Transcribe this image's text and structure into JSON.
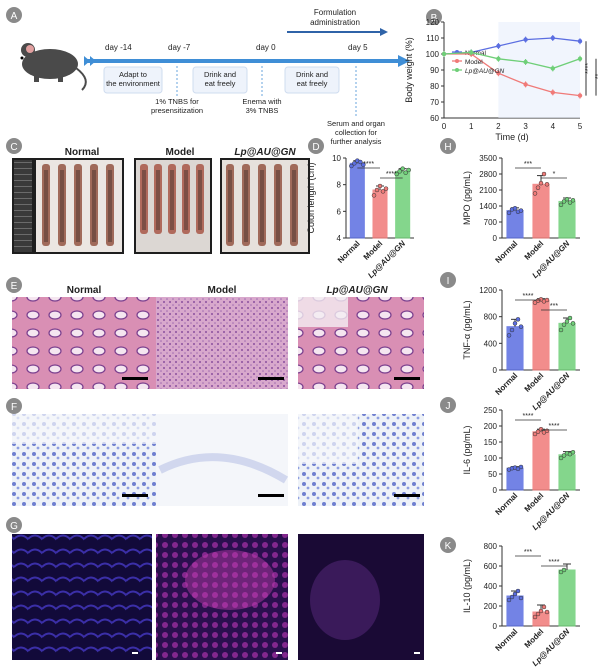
{
  "panelA": {
    "letter": "A",
    "formulation_label": "Formulation administration",
    "days": [
      "day -14",
      "day -7",
      "day 0",
      "day 5"
    ],
    "boxes": [
      "Adapt to the environment",
      "Drink and eat freely",
      "Drink and eat freely"
    ],
    "notes": [
      "1% TNBS for presensitization",
      "Enema with 3% TNBS",
      "Serum and organ collection for further analysis"
    ]
  },
  "panelC": {
    "letter": "C",
    "titles": [
      "Normal",
      "Model",
      "Lp@AU@GN"
    ]
  },
  "panelE": {
    "letter": "E",
    "titles": [
      "Normal",
      "Model",
      "Lp@AU@GN"
    ]
  },
  "panelF": {
    "letter": "F"
  },
  "panelG": {
    "letter": "G"
  },
  "groups": [
    "Normal",
    "Model",
    "Lp@AU@GN"
  ],
  "colors": {
    "normal": "#5b6ee1",
    "model": "#f07a78",
    "treated": "#6fcf78",
    "accent": "#3f8ed6"
  },
  "chart_data": [
    {
      "letter": "B",
      "type": "line",
      "xlabel": "Time (d)",
      "ylabel": "Body weight (%)",
      "xlim": [
        0,
        5
      ],
      "ylim": [
        60,
        120
      ],
      "xticks": [
        0,
        1,
        2,
        3,
        4,
        5
      ],
      "yticks": [
        60,
        70,
        80,
        90,
        100,
        110,
        120
      ],
      "x": [
        0,
        1,
        2,
        3,
        4,
        5
      ],
      "series": [
        {
          "name": "Normal",
          "values": [
            100,
            101,
            105,
            109,
            110,
            108
          ]
        },
        {
          "name": "Model",
          "values": [
            100,
            100,
            88,
            81,
            76,
            74
          ]
        },
        {
          "name": "Lp@AU@GN",
          "values": [
            100,
            101,
            97,
            95,
            91,
            97
          ]
        }
      ],
      "annotations": [
        "****",
        "**"
      ]
    },
    {
      "letter": "D",
      "type": "bar",
      "categories": [
        "Normal",
        "Model",
        "Lp@AU@GN"
      ],
      "ylabel": "Colon length (cm)",
      "ylim": [
        4,
        10
      ],
      "yticks": [
        4,
        6,
        8,
        10
      ],
      "values": [
        9.6,
        7.6,
        9.0
      ],
      "errors": [
        0.2,
        0.3,
        0.2
      ],
      "points": [
        [
          9.4,
          9.6,
          9.8,
          9.7,
          9.5
        ],
        [
          7.2,
          7.6,
          7.9,
          7.5,
          7.7
        ],
        [
          8.8,
          9.0,
          9.2,
          8.9,
          9.1
        ]
      ],
      "significance": [
        {
          "from": 0,
          "to": 1,
          "label": "****"
        },
        {
          "from": 1,
          "to": 2,
          "label": "****"
        }
      ]
    },
    {
      "letter": "H",
      "type": "bar",
      "categories": [
        "Normal",
        "Model",
        "Lp@AU@GN"
      ],
      "ylabel": "MPO (pg/mL)",
      "ylim": [
        0,
        3500
      ],
      "yticks": [
        0,
        700,
        1400,
        2100,
        2800,
        3500
      ],
      "values": [
        1200,
        2350,
        1600
      ],
      "errors": [
        120,
        380,
        150
      ],
      "points": [
        [
          1100,
          1250,
          1300,
          1150,
          1200
        ],
        [
          1950,
          2200,
          2400,
          2800,
          2350
        ],
        [
          1450,
          1600,
          1700,
          1550,
          1650
        ]
      ],
      "significance": [
        {
          "from": 0,
          "to": 1,
          "label": "***"
        },
        {
          "from": 1,
          "to": 2,
          "label": "*"
        }
      ]
    },
    {
      "letter": "I",
      "type": "bar",
      "categories": [
        "Normal",
        "Model",
        "Lp@AU@GN"
      ],
      "ylabel": "TNF-α (pg/mL)",
      "ylim": [
        0,
        1200
      ],
      "yticks": [
        0,
        400,
        800,
        1200
      ],
      "values": [
        650,
        1040,
        700
      ],
      "errors": [
        110,
        30,
        80
      ],
      "points": [
        [
          520,
          600,
          700,
          760,
          650
        ],
        [
          1010,
          1040,
          1060,
          1030,
          1050
        ],
        [
          600,
          680,
          730,
          780,
          700
        ]
      ],
      "significance": [
        {
          "from": 0,
          "to": 1,
          "label": "****"
        },
        {
          "from": 1,
          "to": 2,
          "label": "***"
        }
      ]
    },
    {
      "letter": "J",
      "type": "bar",
      "categories": [
        "Normal",
        "Model",
        "Lp@AU@GN"
      ],
      "ylabel": "IL-6 (pg/mL)",
      "ylim": [
        0,
        250
      ],
      "yticks": [
        0,
        50,
        100,
        150,
        200,
        250
      ],
      "values": [
        68,
        182,
        110
      ],
      "errors": [
        5,
        8,
        10
      ],
      "points": [
        [
          64,
          68,
          70,
          66,
          72
        ],
        [
          175,
          182,
          190,
          180,
          185
        ],
        [
          100,
          108,
          115,
          112,
          118
        ]
      ],
      "significance": [
        {
          "from": 0,
          "to": 1,
          "label": "****"
        },
        {
          "from": 1,
          "to": 2,
          "label": "****"
        }
      ]
    },
    {
      "letter": "K",
      "type": "bar",
      "categories": [
        "Normal",
        "Model",
        "Lp@AU@GN"
      ],
      "ylabel": "IL-10 (pg/mL)",
      "ylim": [
        0,
        800
      ],
      "yticks": [
        0,
        200,
        400,
        600,
        800
      ],
      "values": [
        300,
        140,
        560
      ],
      "errors": [
        50,
        70,
        60
      ],
      "points": [
        [
          260,
          290,
          320,
          350,
          280
        ],
        [
          90,
          120,
          150,
          190,
          140
        ],
        [
          540,
          560
        ]
      ],
      "significance": [
        {
          "from": 0,
          "to": 1,
          "label": "***"
        },
        {
          "from": 1,
          "to": 2,
          "label": "****"
        }
      ]
    }
  ]
}
